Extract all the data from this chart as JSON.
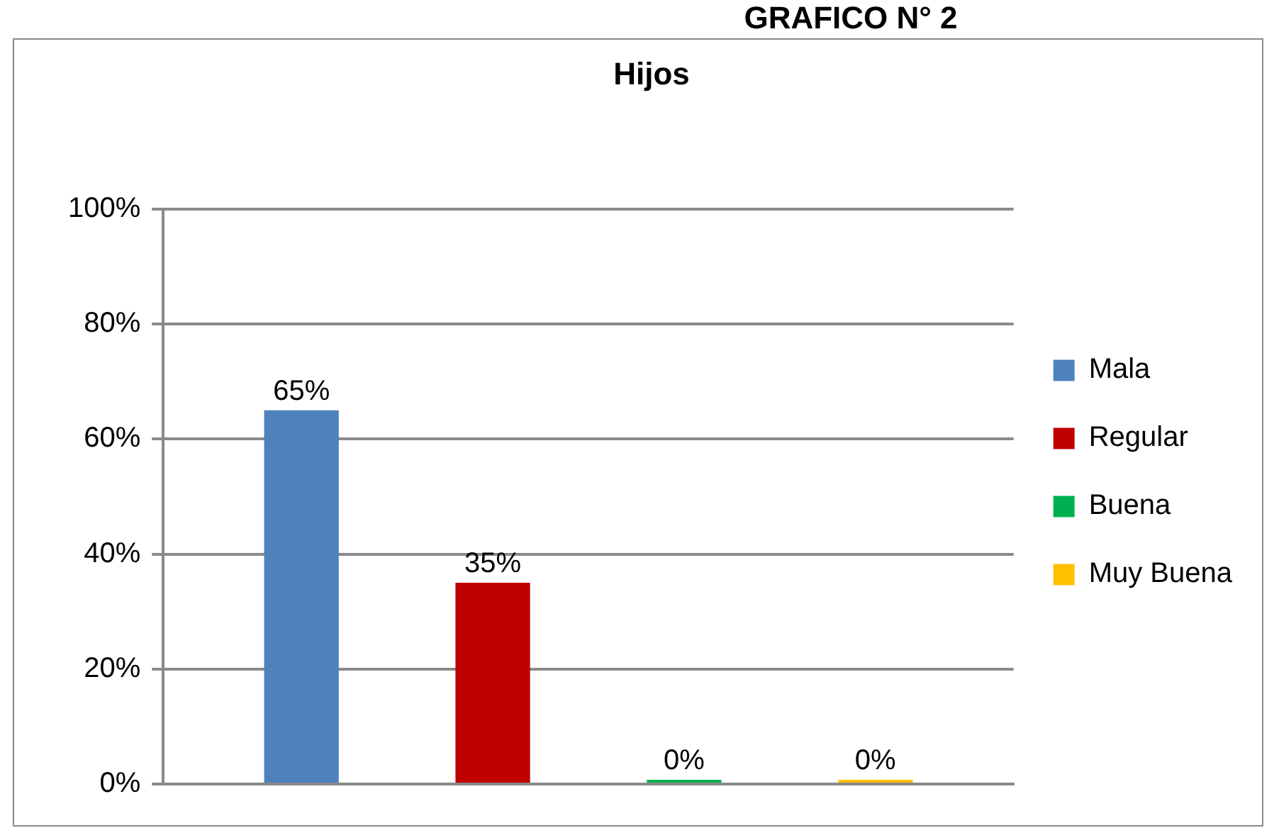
{
  "chart_data": {
    "type": "bar",
    "title": "Hijos",
    "annotations": [
      "GRAFICO N° 2"
    ],
    "categories": [
      null
    ],
    "series": [
      {
        "name": "Mala",
        "color": "#4f81bd",
        "values": [
          65
        ],
        "value_labels": [
          "65%"
        ]
      },
      {
        "name": "Regular",
        "color": "#c00000",
        "values": [
          35
        ],
        "value_labels": [
          "35%"
        ]
      },
      {
        "name": "Buena",
        "color": "#00b050",
        "values": [
          0
        ],
        "value_labels": [
          "0%"
        ]
      },
      {
        "name": "Muy Buena",
        "color": "#ffc000",
        "values": [
          0
        ],
        "value_labels": [
          "0%"
        ]
      }
    ],
    "ylim": [
      0,
      100
    ],
    "yticks": [
      {
        "value": 0,
        "label": "0%"
      },
      {
        "value": 20,
        "label": "20%"
      },
      {
        "value": 40,
        "label": "40%"
      },
      {
        "value": 60,
        "label": "60%"
      },
      {
        "value": 80,
        "label": "80%"
      },
      {
        "value": 100,
        "label": "100%"
      }
    ],
    "grid": "y",
    "legend": "right",
    "tick_labels": "y"
  }
}
